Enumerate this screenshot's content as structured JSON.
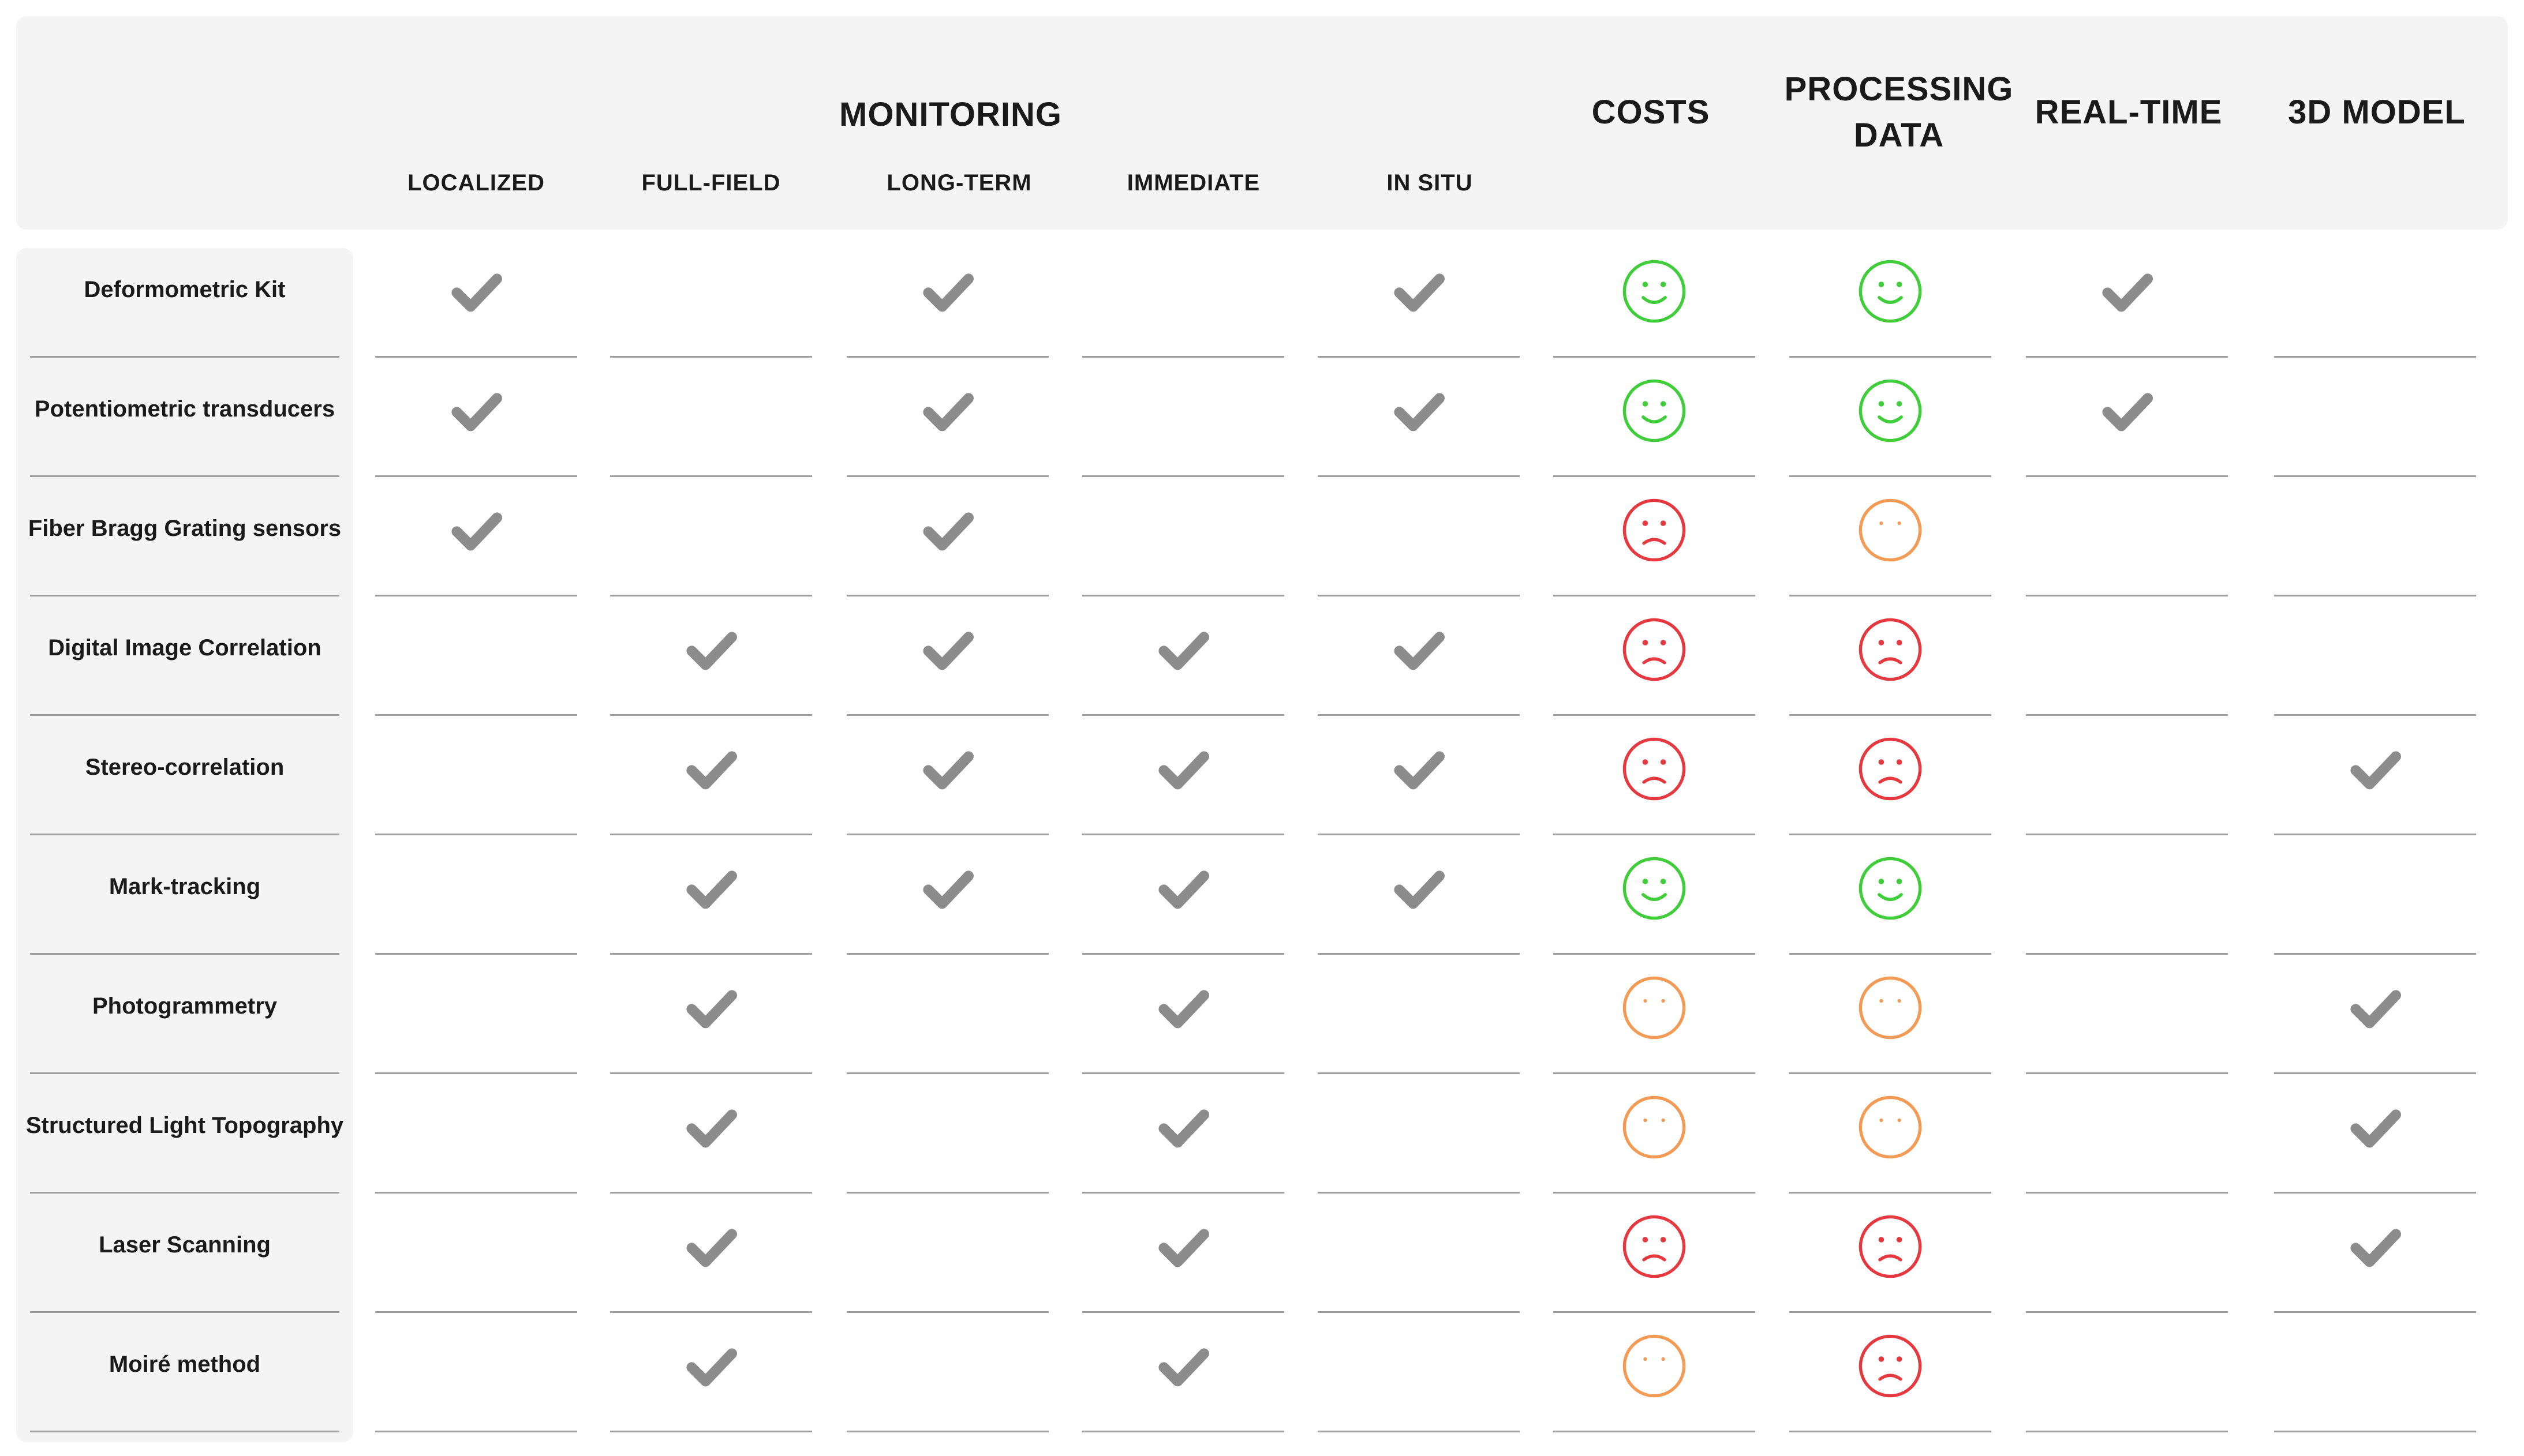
{
  "header": {
    "group_title": "MONITORING",
    "sub_columns": [
      "LOCALIZED",
      "FULL-FIELD",
      "LONG-TERM",
      "IMMEDIATE",
      "IN SITU"
    ],
    "main_columns": [
      "COSTS",
      "PROCESSING DATA",
      "REAL-TIME",
      "3D MODEL"
    ]
  },
  "legend_colors": {
    "check": "#8c8c8c",
    "good": "#3fce3a",
    "neutral": "#f39a55",
    "bad": "#e5383f"
  },
  "rows": [
    {
      "label": "Deformometric Kit",
      "localized": "check",
      "full_field": "",
      "long_term": "check",
      "immediate": "",
      "in_situ": "check",
      "costs": "good",
      "processing_data": "good",
      "real_time": "check",
      "model_3d": ""
    },
    {
      "label": "Potentiometric transducers",
      "localized": "check",
      "full_field": "",
      "long_term": "check",
      "immediate": "",
      "in_situ": "check",
      "costs": "good",
      "processing_data": "good",
      "real_time": "check",
      "model_3d": ""
    },
    {
      "label": "Fiber Bragg Grating sensors",
      "localized": "check",
      "full_field": "",
      "long_term": "check",
      "immediate": "",
      "in_situ": "",
      "costs": "bad",
      "processing_data": "neutral",
      "real_time": "",
      "model_3d": ""
    },
    {
      "label": "Digital Image Correlation",
      "localized": "",
      "full_field": "check",
      "long_term": "check",
      "immediate": "check",
      "in_situ": "check",
      "costs": "bad",
      "processing_data": "bad",
      "real_time": "",
      "model_3d": ""
    },
    {
      "label": "Stereo-correlation",
      "localized": "",
      "full_field": "check",
      "long_term": "check",
      "immediate": "check",
      "in_situ": "check",
      "costs": "bad",
      "processing_data": "bad",
      "real_time": "",
      "model_3d": "check"
    },
    {
      "label": "Mark-tracking",
      "localized": "",
      "full_field": "check",
      "long_term": "check",
      "immediate": "check",
      "in_situ": "check",
      "costs": "good",
      "processing_data": "good",
      "real_time": "",
      "model_3d": ""
    },
    {
      "label": "Photogrammetry",
      "localized": "",
      "full_field": "check",
      "long_term": "",
      "immediate": "check",
      "in_situ": "",
      "costs": "neutral",
      "processing_data": "neutral",
      "real_time": "",
      "model_3d": "check"
    },
    {
      "label": "Structured Light Topography",
      "localized": "",
      "full_field": "check",
      "long_term": "",
      "immediate": "check",
      "in_situ": "",
      "costs": "neutral",
      "processing_data": "neutral",
      "real_time": "",
      "model_3d": "check"
    },
    {
      "label": "Laser Scanning",
      "localized": "",
      "full_field": "check",
      "long_term": "",
      "immediate": "check",
      "in_situ": "",
      "costs": "bad",
      "processing_data": "bad",
      "real_time": "",
      "model_3d": "check"
    },
    {
      "label": "Moiré method",
      "localized": "",
      "full_field": "check",
      "long_term": "",
      "immediate": "check",
      "in_situ": "",
      "costs": "neutral",
      "processing_data": "bad",
      "real_time": "",
      "model_3d": ""
    }
  ]
}
